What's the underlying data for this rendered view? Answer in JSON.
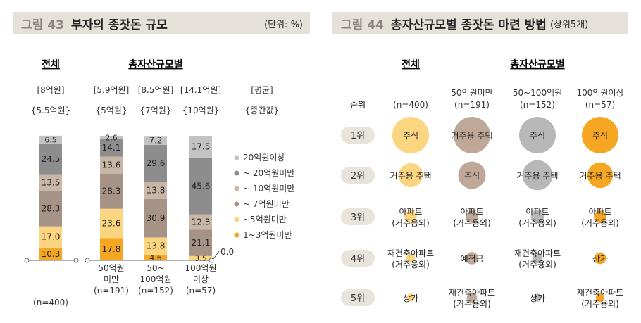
{
  "figure43": {
    "number": "그림 43",
    "title": "부자의 종잣돈 규모",
    "unit": "(단위: %)",
    "group_labels": {
      "total": "전체",
      "by_asset": "총자산규모별"
    },
    "mean_header": [
      "[8억원]",
      "[5.9억원]",
      "[8.5억원]",
      "[14.1억원]",
      "[평균]"
    ],
    "median_header": [
      "{5.5억원}",
      "{5억원}",
      "{7억원}",
      "{10억원}",
      "{중간값}"
    ]
  },
  "figure44": {
    "number": "그림 44",
    "title": "총자산규모별 종잣돈 마련 방법",
    "subtitle": "(상위5개)",
    "group_labels": {
      "total": "전체",
      "by_asset": "총자산규모별"
    },
    "rank_header": "순위"
  },
  "colors": {
    "s1": "#f5a623",
    "s2": "#fcd581",
    "s3": "#a69385",
    "s4": "#c8b7a7",
    "s5": "#8d8d8d",
    "s6": "#c3c3c3",
    "bubble_total": "#fcd581",
    "bubble_under50": "#c0a898",
    "bubble_50to100": "#b8b8b8",
    "bubble_over100": "#f5a623",
    "header_bg": "#e5e1d8",
    "rank_pill": "#e8e3db"
  },
  "chart_data": [
    {
      "type": "bar",
      "stacked": true,
      "categories": [
        {
          "lines": [
            "(n=400)"
          ]
        },
        {
          "lines": [
            "50억원",
            "미만",
            "(n=191)"
          ]
        },
        {
          "lines": [
            "50~",
            "100억원",
            "(n=152)"
          ]
        },
        {
          "lines": [
            "100억원",
            "이상",
            "(n=57)"
          ]
        }
      ],
      "series": [
        {
          "name": "1~3억원미만",
          "color_key": "s1",
          "values": [
            10.3,
            17.8,
            4.6,
            0.0
          ]
        },
        {
          "name": "~5억원미만",
          "color_key": "s2",
          "values": [
            17.0,
            23.6,
            13.8,
            3.5
          ]
        },
        {
          "name": "~ 7억원미만",
          "color_key": "s3",
          "values": [
            28.3,
            28.3,
            30.9,
            21.1
          ]
        },
        {
          "name": "~ 10억원미만",
          "color_key": "s4",
          "values": [
            13.5,
            13.6,
            13.8,
            12.3
          ]
        },
        {
          "name": "~ 20억원미만",
          "color_key": "s5",
          "values": [
            24.5,
            14.1,
            29.6,
            45.6
          ]
        },
        {
          "name": "20억원이상",
          "color_key": "s6",
          "values": [
            6.5,
            2.6,
            7.2,
            17.5
          ]
        }
      ],
      "zero_label": "0.0",
      "ylim": [
        0,
        100
      ],
      "legend_position": "right"
    },
    {
      "type": "table",
      "rows": [
        "1위",
        "2위",
        "3위",
        "4위",
        "5위"
      ],
      "columns": [
        {
          "lines": [
            "(n=400)"
          ],
          "color_key": "bubble_total"
        },
        {
          "lines": [
            "50억원미만",
            "(n=191)"
          ],
          "color_key": "bubble_under50"
        },
        {
          "lines": [
            "50~100억원",
            "(n=152)"
          ],
          "color_key": "bubble_50to100"
        },
        {
          "lines": [
            "100억원이상",
            "(n=57)"
          ],
          "color_key": "bubble_over100"
        }
      ],
      "cells": [
        [
          {
            "lines": [
              "주식"
            ],
            "size": 1.0
          },
          {
            "lines": [
              "거주용 주택"
            ],
            "size": 1.0
          },
          {
            "lines": [
              "주식"
            ],
            "size": 1.0
          },
          {
            "lines": [
              "주식"
            ],
            "size": 1.0
          }
        ],
        [
          {
            "lines": [
              "거주용 주택"
            ],
            "size": 0.66
          },
          {
            "lines": [
              "주식"
            ],
            "size": 0.75
          },
          {
            "lines": [
              "거주용 주택"
            ],
            "size": 0.82
          },
          {
            "lines": [
              "거주용 주택"
            ],
            "size": 0.7
          }
        ],
        [
          {
            "lines": [
              "아파트",
              "(거주용외)"
            ],
            "size": 0.34
          },
          {
            "lines": [
              "아파트",
              "(거주용외)"
            ],
            "size": 0.34
          },
          {
            "lines": [
              "아파트",
              "(거주용외)"
            ],
            "size": 0.36
          },
          {
            "lines": [
              "아파트",
              "(거주용외)"
            ],
            "size": 0.34
          }
        ],
        [
          {
            "lines": [
              "재건축아파트",
              "(거주용외)"
            ],
            "size": 0.24
          },
          {
            "lines": [
              "예적금"
            ],
            "size": 0.34
          },
          {
            "lines": [
              "재건축아파트",
              "(거주용외)"
            ],
            "size": 0.28
          },
          {
            "lines": [
              "상가"
            ],
            "size": 0.32
          }
        ],
        [
          {
            "lines": [
              "상가"
            ],
            "size": 0.22
          },
          {
            "lines": [
              "재건축아파트",
              "(거주용외)"
            ],
            "size": 0.28
          },
          {
            "lines": [
              "상가"
            ],
            "size": 0.22
          },
          {
            "lines": [
              "재건축아파트",
              "(거주용외)"
            ],
            "size": 0.24
          }
        ]
      ]
    }
  ]
}
